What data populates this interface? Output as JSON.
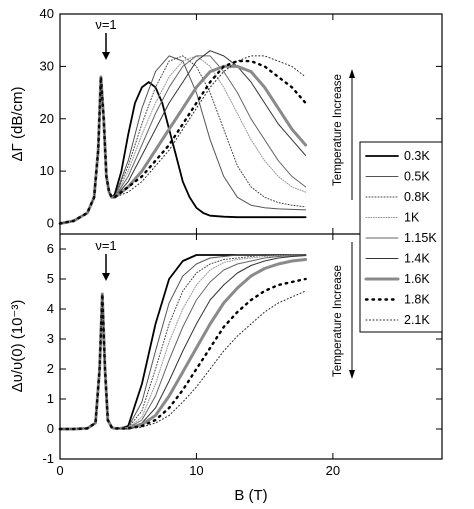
{
  "chart_data": [
    {
      "panel": "top",
      "type": "line",
      "xlabel": "B (T)",
      "ylabel": "ΔΓ (dB/cm)",
      "xlim": [
        0,
        28
      ],
      "ylim": [
        -2,
        40
      ],
      "xticks": [
        "0",
        "10",
        "20"
      ],
      "yticks": [
        "0",
        "10",
        "20",
        "30",
        "40"
      ],
      "annotation": "ν=1",
      "arrow_annotation": "Temperature Increase",
      "arrow_direction": "up",
      "series": [
        {
          "name": "0.3K",
          "x": [
            0,
            1,
            2,
            2.5,
            2.8,
            3,
            3.2,
            3.4,
            3.6,
            3.8,
            4,
            4.5,
            5,
            5.5,
            6,
            6.5,
            7,
            7.5,
            8,
            8.5,
            9,
            9.5,
            10,
            10.5,
            11,
            12,
            13,
            14,
            15,
            16,
            17,
            18
          ],
          "y": [
            0,
            0.5,
            2,
            5,
            14,
            28,
            20,
            9,
            6,
            5,
            5.5,
            10,
            17,
            23,
            26,
            27,
            26,
            23,
            18,
            13,
            8,
            5,
            3,
            2,
            1.5,
            1.3,
            1.2,
            1.2,
            1.2,
            1.2,
            1.2,
            1.2
          ]
        },
        {
          "name": "0.5K",
          "x": [
            0,
            1,
            2,
            2.5,
            2.8,
            3,
            3.2,
            3.4,
            3.6,
            3.8,
            4,
            5,
            6,
            7,
            8,
            9,
            10,
            11,
            12,
            13,
            14,
            15,
            16,
            17,
            18
          ],
          "y": [
            0,
            0.5,
            2,
            5,
            14,
            28,
            20,
            9,
            6,
            5,
            5,
            12,
            22,
            29,
            32,
            31,
            25,
            16,
            9,
            5,
            3.5,
            3,
            2.8,
            2.7,
            2.6
          ]
        },
        {
          "name": "0.8K",
          "x": [
            0,
            1,
            2,
            2.5,
            2.8,
            3,
            3.2,
            3.4,
            3.6,
            3.8,
            4,
            5,
            6,
            7,
            8,
            9,
            10,
            11,
            12,
            13,
            14,
            15,
            16,
            17,
            18
          ],
          "y": [
            0,
            0.5,
            2,
            5,
            14,
            28,
            20,
            9,
            6,
            5,
            5,
            11,
            19,
            26,
            31,
            32,
            30,
            25,
            18,
            11,
            7,
            5,
            4,
            3.5,
            3.2
          ]
        },
        {
          "name": "1K",
          "x": [
            0,
            1,
            2,
            2.5,
            2.8,
            3,
            3.2,
            3.4,
            3.6,
            3.8,
            4,
            5,
            6,
            7,
            8,
            9,
            10,
            11,
            12,
            13,
            14,
            15,
            16,
            17,
            18
          ],
          "y": [
            0,
            0.5,
            2,
            5,
            14,
            28,
            20,
            9,
            6,
            5,
            5,
            10,
            17,
            23,
            28,
            31,
            32,
            30,
            26,
            21,
            16,
            12,
            9,
            7,
            6
          ]
        },
        {
          "name": "1.15K",
          "x": [
            0,
            1,
            2,
            2.5,
            2.8,
            3,
            3.2,
            3.4,
            3.6,
            3.8,
            4,
            5,
            6,
            7,
            8,
            9,
            10,
            11,
            12,
            13,
            14,
            15,
            16,
            17,
            18
          ],
          "y": [
            0,
            0.5,
            2,
            5,
            14,
            28,
            20,
            9,
            6,
            5,
            5,
            9,
            15,
            21,
            26,
            30,
            32,
            32,
            29,
            25,
            20,
            16,
            12,
            9,
            7
          ]
        },
        {
          "name": "1.4K",
          "x": [
            0,
            1,
            2,
            2.5,
            2.8,
            3,
            3.2,
            3.4,
            3.6,
            3.8,
            4,
            5,
            6,
            7,
            8,
            9,
            10,
            11,
            12,
            13,
            14,
            15,
            16,
            17,
            18
          ],
          "y": [
            0,
            0.5,
            2,
            5,
            14,
            28,
            20,
            9,
            6,
            5,
            5,
            8,
            13,
            18,
            23,
            27,
            31,
            33,
            32,
            30,
            27,
            23,
            19,
            16,
            13
          ]
        },
        {
          "name": "1.6K",
          "x": [
            0,
            1,
            2,
            2.5,
            2.8,
            3,
            3.2,
            3.4,
            3.6,
            3.8,
            4,
            5,
            6,
            7,
            8,
            9,
            10,
            11,
            12,
            13,
            14,
            15,
            16,
            17,
            18
          ],
          "y": [
            0,
            0.5,
            2,
            5,
            14,
            28,
            20,
            9,
            6,
            5,
            5,
            7,
            10,
            14,
            18,
            22,
            26,
            29,
            30,
            30,
            29,
            26,
            22,
            18,
            15
          ]
        },
        {
          "name": "1.8K",
          "x": [
            0,
            1,
            2,
            2.5,
            2.8,
            3,
            3.2,
            3.4,
            3.6,
            3.8,
            4,
            5,
            6,
            7,
            8,
            9,
            10,
            11,
            12,
            13,
            14,
            15,
            16,
            17,
            18
          ],
          "y": [
            0,
            0.5,
            2,
            5,
            14,
            28,
            20,
            9,
            6,
            5,
            5,
            7,
            9,
            12,
            15,
            19,
            23,
            27,
            30,
            31,
            31,
            30,
            28,
            26,
            23
          ]
        },
        {
          "name": "2.1K",
          "x": [
            0,
            1,
            2,
            2.5,
            2.8,
            3,
            3.2,
            3.4,
            3.6,
            3.8,
            4,
            5,
            6,
            7,
            8,
            9,
            10,
            11,
            12,
            13,
            14,
            15,
            16,
            17,
            18
          ],
          "y": [
            0,
            0.5,
            2,
            5,
            14,
            28,
            20,
            9,
            6,
            5,
            5,
            6,
            8,
            11,
            14,
            18,
            22,
            26,
            29,
            31,
            32,
            32,
            31,
            30,
            28
          ]
        }
      ]
    },
    {
      "panel": "bottom",
      "type": "line",
      "xlabel": "B (T)",
      "ylabel": "Δυ/υ(0) (10⁻³)",
      "xlim": [
        0,
        28
      ],
      "ylim": [
        -1,
        6.5
      ],
      "xticks": [
        "0",
        "10",
        "20"
      ],
      "yticks": [
        "-1",
        "0",
        "1",
        "2",
        "3",
        "4",
        "5",
        "6"
      ],
      "annotation": "ν=1",
      "arrow_annotation": "Temperature Increase",
      "arrow_direction": "down",
      "series": [
        {
          "name": "0.3K",
          "x": [
            0,
            1,
            2,
            2.6,
            2.9,
            3.1,
            3.3,
            3.5,
            3.8,
            4,
            4.5,
            5,
            6,
            7,
            8,
            9,
            10,
            11,
            12,
            13,
            14,
            15,
            16,
            17,
            18
          ],
          "y": [
            0,
            0,
            0.02,
            0.2,
            2,
            4.5,
            2,
            0.3,
            0.05,
            0.02,
            0.03,
            0.1,
            1.5,
            3.5,
            5,
            5.6,
            5.8,
            5.8,
            5.8,
            5.8,
            5.8,
            5.8,
            5.8,
            5.8,
            5.8
          ]
        },
        {
          "name": "0.5K",
          "x": [
            0,
            1,
            2,
            2.6,
            2.9,
            3.1,
            3.3,
            3.5,
            3.8,
            4,
            4.5,
            5,
            6,
            7,
            8,
            9,
            10,
            11,
            12,
            13,
            14,
            15,
            16,
            17,
            18
          ],
          "y": [
            0,
            0,
            0.02,
            0.2,
            2,
            4.5,
            2,
            0.3,
            0.05,
            0.02,
            0.03,
            0.06,
            0.9,
            2.6,
            4.2,
            5.1,
            5.5,
            5.7,
            5.75,
            5.8,
            5.8,
            5.8,
            5.8,
            5.8,
            5.8
          ]
        },
        {
          "name": "0.8K",
          "x": [
            0,
            1,
            2,
            2.6,
            2.9,
            3.1,
            3.3,
            3.5,
            3.8,
            4,
            4.5,
            5,
            6,
            7,
            8,
            9,
            10,
            11,
            12,
            13,
            14,
            15,
            16,
            17,
            18
          ],
          "y": [
            0,
            0,
            0.02,
            0.2,
            2,
            4.5,
            2,
            0.3,
            0.05,
            0.02,
            0.03,
            0.05,
            0.6,
            2,
            3.5,
            4.6,
            5.2,
            5.5,
            5.65,
            5.7,
            5.75,
            5.8,
            5.8,
            5.8,
            5.8
          ]
        },
        {
          "name": "1K",
          "x": [
            0,
            1,
            2,
            2.6,
            2.9,
            3.1,
            3.3,
            3.5,
            3.8,
            4,
            4.5,
            5,
            6,
            7,
            8,
            9,
            10,
            11,
            12,
            13,
            14,
            15,
            16,
            17,
            18
          ],
          "y": [
            0,
            0,
            0.02,
            0.2,
            2,
            4.5,
            2,
            0.3,
            0.05,
            0.02,
            0.02,
            0.04,
            0.4,
            1.5,
            2.9,
            4,
            4.8,
            5.3,
            5.55,
            5.65,
            5.7,
            5.75,
            5.78,
            5.8,
            5.8
          ]
        },
        {
          "name": "1.15K",
          "x": [
            0,
            1,
            2,
            2.6,
            2.9,
            3.1,
            3.3,
            3.5,
            3.8,
            4,
            4.5,
            5,
            6,
            7,
            8,
            9,
            10,
            11,
            12,
            13,
            14,
            15,
            16,
            17,
            18
          ],
          "y": [
            0,
            0,
            0.02,
            0.2,
            2,
            4.5,
            2,
            0.3,
            0.05,
            0.02,
            0.02,
            0.03,
            0.3,
            1.1,
            2.3,
            3.4,
            4.3,
            4.9,
            5.3,
            5.5,
            5.6,
            5.7,
            5.75,
            5.78,
            5.8
          ]
        },
        {
          "name": "1.4K",
          "x": [
            0,
            1,
            2,
            2.6,
            2.9,
            3.1,
            3.3,
            3.5,
            3.8,
            4,
            4.5,
            5,
            6,
            7,
            8,
            9,
            10,
            11,
            12,
            13,
            14,
            15,
            16,
            17,
            18
          ],
          "y": [
            0,
            0,
            0.02,
            0.2,
            2,
            4.5,
            2,
            0.3,
            0.05,
            0.02,
            0.02,
            0.03,
            0.2,
            0.7,
            1.6,
            2.6,
            3.5,
            4.3,
            4.8,
            5.2,
            5.45,
            5.6,
            5.7,
            5.75,
            5.78
          ]
        },
        {
          "name": "1.6K",
          "x": [
            0,
            1,
            2,
            2.6,
            2.9,
            3.1,
            3.3,
            3.5,
            3.8,
            4,
            4.5,
            5,
            6,
            7,
            8,
            9,
            10,
            11,
            12,
            13,
            14,
            15,
            16,
            17,
            18
          ],
          "y": [
            0,
            0,
            0.02,
            0.2,
            2,
            4.5,
            2,
            0.3,
            0.05,
            0.02,
            0.02,
            0.02,
            0.15,
            0.45,
            1.1,
            1.9,
            2.7,
            3.5,
            4.2,
            4.7,
            5.1,
            5.35,
            5.5,
            5.6,
            5.65
          ]
        },
        {
          "name": "1.8K",
          "x": [
            0,
            1,
            2,
            2.6,
            2.9,
            3.1,
            3.3,
            3.5,
            3.8,
            4,
            4.5,
            5,
            6,
            7,
            8,
            9,
            10,
            11,
            12,
            13,
            14,
            15,
            16,
            17,
            18
          ],
          "y": [
            0,
            0,
            0.02,
            0.2,
            2,
            4.5,
            2,
            0.3,
            0.05,
            0.02,
            0.02,
            0.02,
            0.1,
            0.3,
            0.7,
            1.3,
            2,
            2.7,
            3.4,
            3.9,
            4.3,
            4.6,
            4.8,
            4.9,
            5
          ]
        },
        {
          "name": "2.1K",
          "x": [
            0,
            1,
            2,
            2.6,
            2.9,
            3.1,
            3.3,
            3.5,
            3.8,
            4,
            4.5,
            5,
            6,
            7,
            8,
            9,
            10,
            11,
            12,
            13,
            14,
            15,
            16,
            17,
            18
          ],
          "y": [
            0,
            0,
            0.02,
            0.2,
            2,
            4.5,
            2,
            0.3,
            0.05,
            0.02,
            0.02,
            0.02,
            0.06,
            0.2,
            0.45,
            0.9,
            1.4,
            2,
            2.6,
            3.1,
            3.5,
            3.9,
            4.2,
            4.4,
            4.6
          ]
        }
      ]
    }
  ],
  "styles": [
    {
      "name": "0.3K",
      "color": "#000000",
      "width": 1.8,
      "dash": ""
    },
    {
      "name": "0.5K",
      "color": "#555555",
      "width": 1.0,
      "dash": ""
    },
    {
      "name": "0.8K",
      "color": "#444444",
      "width": 1.0,
      "dash": "1 2"
    },
    {
      "name": "1K",
      "color": "#999999",
      "width": 1.0,
      "dash": "1 1.5"
    },
    {
      "name": "1.15K",
      "color": "#666666",
      "width": 1.0,
      "dash": ""
    },
    {
      "name": "1.4K",
      "color": "#333333",
      "width": 1.0,
      "dash": ""
    },
    {
      "name": "1.6K",
      "color": "#8a8a8a",
      "width": 3.0,
      "dash": ""
    },
    {
      "name": "1.8K",
      "color": "#000000",
      "width": 2.4,
      "dash": "1.5 5"
    },
    {
      "name": "2.1K",
      "color": "#222222",
      "width": 1.0,
      "dash": "1 2.5"
    }
  ]
}
